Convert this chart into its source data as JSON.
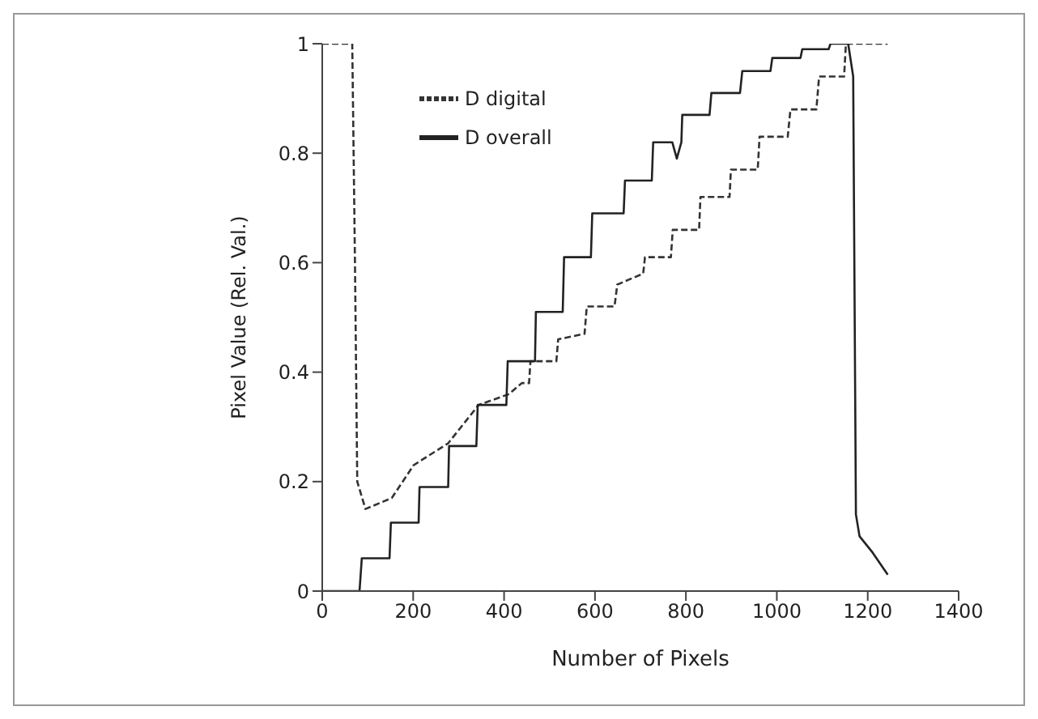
{
  "chart_data": {
    "type": "line",
    "xlabel": "Number of Pixels",
    "ylabel": "Pixel Value (Rel. Val.)",
    "xlim": [
      0,
      1400
    ],
    "xticks": [
      0,
      200,
      400,
      600,
      800,
      1000,
      1200,
      1400
    ],
    "ylim": [
      0,
      1
    ],
    "yticks": [
      0,
      0.2,
      0.4,
      0.6,
      0.8,
      1
    ],
    "grid": false,
    "legend": "top left",
    "marker": "none",
    "series": [
      {
        "name": "D digital",
        "color": "#333333",
        "line_style": "dashed",
        "x": [
          0,
          66,
          72,
          77,
          95,
          153,
          201,
          277,
          344,
          411,
          439,
          455,
          458,
          515,
          519,
          577,
          582,
          643,
          649,
          706,
          710,
          767,
          771,
          829,
          832,
          896,
          899,
          958,
          962,
          1024,
          1030,
          1087,
          1093,
          1148,
          1152,
          1244
        ],
        "values": [
          1,
          1,
          0.6,
          0.2,
          0.15,
          0.17,
          0.23,
          0.27,
          0.34,
          0.36,
          0.38,
          0.38,
          0.42,
          0.42,
          0.46,
          0.47,
          0.52,
          0.52,
          0.56,
          0.58,
          0.61,
          0.61,
          0.66,
          0.66,
          0.72,
          0.72,
          0.77,
          0.77,
          0.83,
          0.83,
          0.88,
          0.88,
          0.94,
          0.94,
          1,
          1
        ]
      },
      {
        "name": "D overall",
        "color": "#222222",
        "line_style": "solid",
        "x": [
          0,
          82,
          87,
          148,
          151,
          212,
          214,
          277,
          279,
          339,
          342,
          405,
          408,
          468,
          470,
          529,
          532,
          591,
          594,
          663,
          666,
          725,
          728,
          770,
          780,
          790,
          792,
          852,
          856,
          919,
          924,
          986,
          990,
          1052,
          1056,
          1114,
          1118,
          1157,
          1168,
          1174,
          1182,
          1211,
          1244
        ],
        "values": [
          0,
          0,
          0.06,
          0.06,
          0.125,
          0.125,
          0.19,
          0.19,
          0.265,
          0.265,
          0.34,
          0.34,
          0.42,
          0.42,
          0.51,
          0.51,
          0.61,
          0.61,
          0.69,
          0.69,
          0.75,
          0.75,
          0.82,
          0.82,
          0.79,
          0.82,
          0.87,
          0.87,
          0.91,
          0.91,
          0.95,
          0.95,
          0.974,
          0.974,
          0.99,
          0.99,
          1,
          1,
          0.94,
          0.14,
          0.1,
          0.07,
          0.03
        ]
      }
    ]
  }
}
